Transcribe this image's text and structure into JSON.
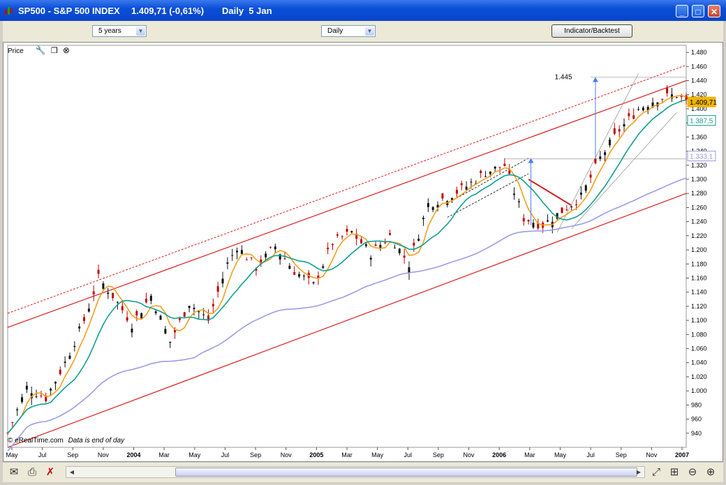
{
  "window": {
    "symbol": "SP500 - S&P 500 INDEX",
    "price": "1.409,71 (-0,61%)",
    "period": "Daily  5 Jan"
  },
  "toolbar": {
    "range": "5 years",
    "interval": "Daily",
    "indicator_button": "Indicator/Backtest"
  },
  "panel": {
    "label": "Price"
  },
  "footer": {
    "copyright": "© eRealTime.com",
    "note": "Data is end of day"
  },
  "chart_data": {
    "type": "candlestick",
    "instrument": "S&P 500 INDEX",
    "last_price": 1409.71,
    "change_pct": -0.61,
    "y_ticks": [
      940,
      960,
      980,
      1000,
      1020,
      1040,
      1060,
      1080,
      1100,
      1120,
      1140,
      1160,
      1180,
      1200,
      1220,
      1240,
      1260,
      1280,
      1300,
      1320,
      1340,
      1360,
      1380,
      1400,
      1420,
      1440,
      1460,
      1480
    ],
    "x_labels": [
      "May",
      "Jul",
      "Sep",
      "Nov",
      "2004",
      "Mar",
      "May",
      "Jul",
      "Sep",
      "Nov",
      "2005",
      "Mar",
      "May",
      "Jul",
      "Sep",
      "Nov",
      "2006",
      "Mar",
      "May",
      "Jul",
      "Sep",
      "Nov",
      "2007"
    ],
    "price_labels": [
      {
        "value": "1.409,71",
        "color": "#f0b400"
      },
      {
        "value": "1.387,5",
        "color": "#1a9a8a"
      },
      {
        "value": "1.333,1",
        "color": "#9999dd"
      }
    ],
    "annotations": [
      {
        "text": "1.445",
        "value": 1445
      }
    ],
    "moving_averages": [
      {
        "color": "#f0a020"
      },
      {
        "color": "#10a090"
      },
      {
        "color": "#9c9ce8"
      }
    ],
    "channel_color": "#d81e1e",
    "path_waypoints": [
      [
        0,
        940
      ],
      [
        4,
        1005
      ],
      [
        8,
        990
      ],
      [
        12,
        1040
      ],
      [
        16,
        1100
      ],
      [
        19,
        1160
      ],
      [
        22,
        1135
      ],
      [
        26,
        1095
      ],
      [
        30,
        1135
      ],
      [
        34,
        1070
      ],
      [
        38,
        1125
      ],
      [
        42,
        1100
      ],
      [
        46,
        1180
      ],
      [
        48,
        1205
      ],
      [
        52,
        1175
      ],
      [
        56,
        1205
      ],
      [
        60,
        1170
      ],
      [
        64,
        1150
      ],
      [
        68,
        1210
      ],
      [
        72,
        1225
      ],
      [
        76,
        1195
      ],
      [
        80,
        1220
      ],
      [
        84,
        1180
      ],
      [
        88,
        1265
      ],
      [
        92,
        1275
      ],
      [
        96,
        1290
      ],
      [
        100,
        1310
      ],
      [
        104,
        1320
      ],
      [
        108,
        1245
      ],
      [
        112,
        1235
      ],
      [
        116,
        1255
      ],
      [
        120,
        1275
      ],
      [
        124,
        1330
      ],
      [
        128,
        1370
      ],
      [
        132,
        1400
      ],
      [
        136,
        1415
      ],
      [
        140,
        1420
      ],
      [
        142,
        1410
      ]
    ]
  }
}
